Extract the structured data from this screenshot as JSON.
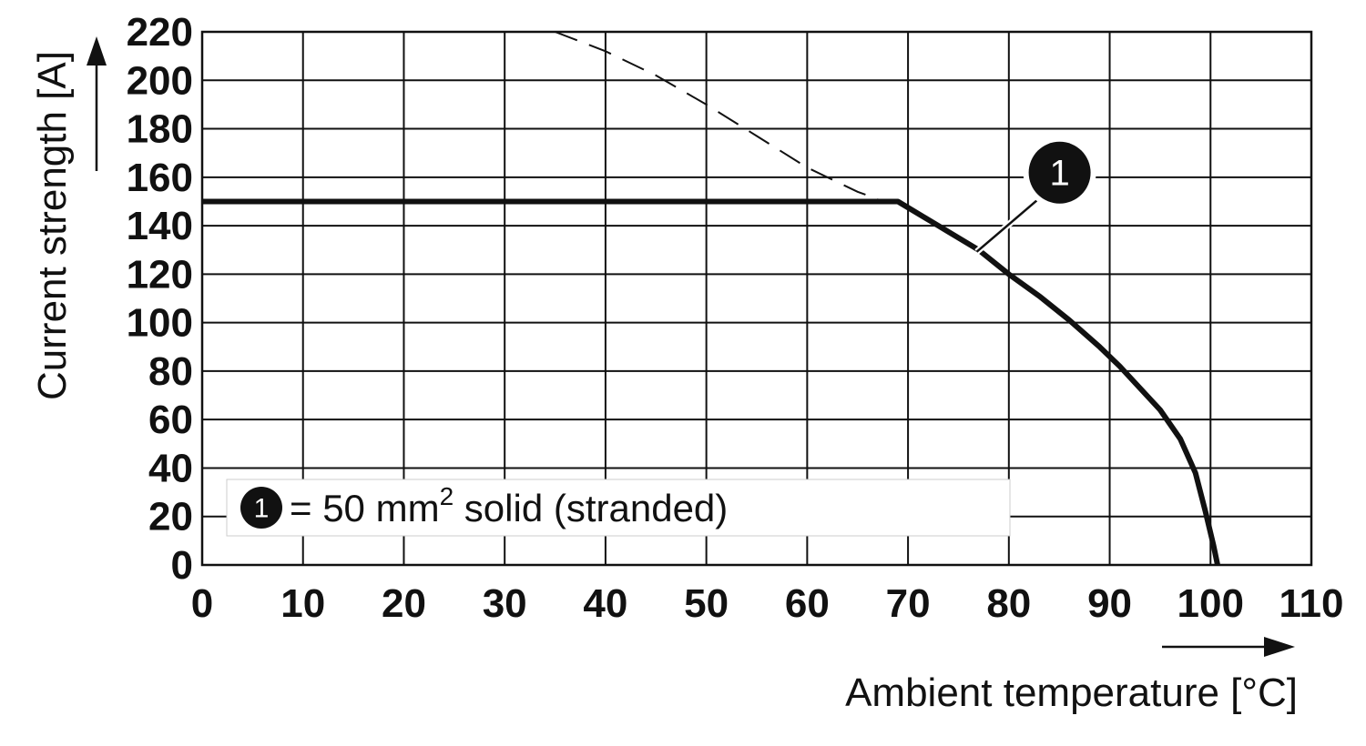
{
  "chart_data": {
    "type": "line",
    "title": "",
    "xlabel": "Ambient temperature [°C]",
    "ylabel": "Current strength [A]",
    "xlim": [
      0,
      110
    ],
    "ylim": [
      0,
      220
    ],
    "x_ticks": [
      0,
      10,
      20,
      30,
      40,
      50,
      60,
      70,
      80,
      90,
      100,
      110
    ],
    "y_ticks": [
      0,
      20,
      40,
      60,
      80,
      100,
      120,
      140,
      160,
      180,
      200,
      220
    ],
    "grid": true,
    "series": [
      {
        "style": "solid",
        "color": "#111111",
        "points": [
          [
            0,
            150
          ],
          [
            69,
            150
          ],
          [
            73,
            140
          ],
          [
            77,
            130
          ],
          [
            80,
            120
          ],
          [
            83,
            111
          ],
          [
            86,
            101
          ],
          [
            89,
            90
          ],
          [
            91,
            82
          ],
          [
            93,
            73
          ],
          [
            95,
            64
          ],
          [
            97,
            52
          ],
          [
            98.5,
            38
          ],
          [
            99.5,
            22
          ],
          [
            100.3,
            8
          ],
          [
            100.7,
            0
          ]
        ]
      },
      {
        "style": "dashed",
        "color": "#111111",
        "points": [
          [
            35,
            220
          ],
          [
            40,
            212
          ],
          [
            45,
            202
          ],
          [
            50,
            190
          ],
          [
            55,
            177
          ],
          [
            60,
            164
          ],
          [
            65,
            154
          ],
          [
            67,
            151
          ]
        ]
      }
    ],
    "callout": {
      "number": "1",
      "target": [
        77,
        130
      ]
    },
    "legend": {
      "number": "1",
      "text_prefix": "= 50 mm",
      "superscript": "2",
      "text_suffix": " solid (stranded)",
      "placement": "bottom-left"
    }
  }
}
